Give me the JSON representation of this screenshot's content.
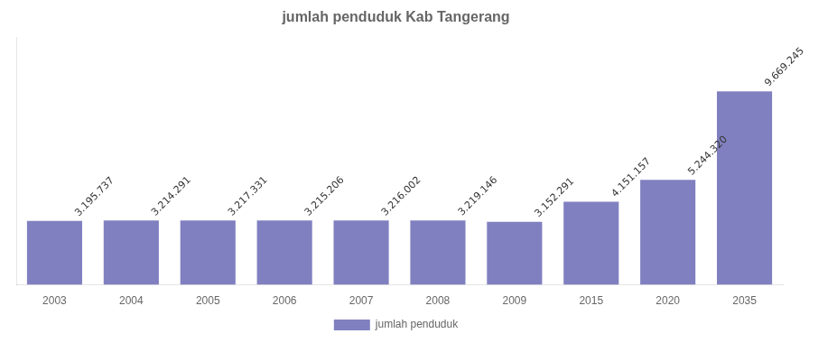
{
  "chart_data": {
    "type": "bar",
    "title": "jumlah penduduk Kab Tangerang",
    "categories": [
      "2003",
      "2004",
      "2005",
      "2006",
      "2007",
      "2008",
      "2009",
      "2015",
      "2020",
      "2035"
    ],
    "series": [
      {
        "name": "jumlah penduduk",
        "color": "#8080c0",
        "values": [
          3195737,
          3214291,
          3217331,
          3215206,
          3216002,
          3219146,
          3152291,
          4151157,
          5244320,
          9669245
        ],
        "value_labels": [
          "3.195.737",
          "3.214.291",
          "3.217.331",
          "3.215.206",
          "3.216.002",
          "3.219.146",
          "3.152.291",
          "4.151.157",
          "5.244.320",
          "9.669.245"
        ]
      }
    ],
    "ylim": [
      0,
      12376633.6
    ],
    "grid": false,
    "legend": "bottom",
    "data_labels": true,
    "tick_labels": "x"
  }
}
